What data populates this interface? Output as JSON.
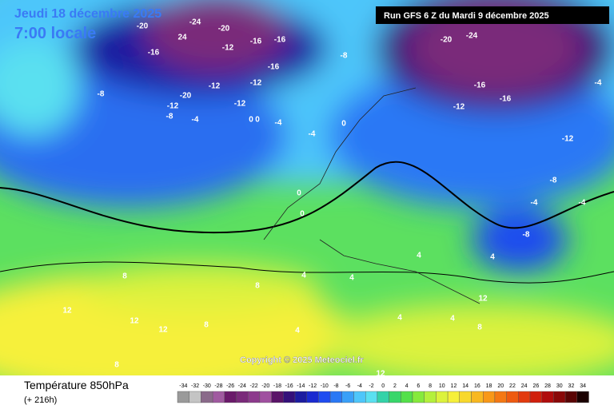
{
  "header": {
    "title": "Jeudi 18 décembre 2025",
    "subtitle": "7:00 locale",
    "run": "Run GFS 6 Z du Mardi 9 décembre 2025"
  },
  "copyright": "Copyright © 2025 Meteociel.fr",
  "footer": {
    "variable": "Température 850hPa",
    "lead": "(+ 216h)"
  },
  "map_labels": [
    -20,
    24,
    -24,
    -20,
    -16,
    -16,
    -12,
    -8,
    -16,
    -16,
    -12,
    -8,
    -20,
    -12,
    -4,
    -12,
    -8,
    -12,
    -16,
    -20,
    -24,
    -16,
    -12,
    -4,
    -12,
    -8,
    -4,
    0,
    0,
    0,
    -4,
    -4,
    0,
    4,
    4,
    4,
    8,
    8,
    12,
    12,
    12,
    8,
    4,
    12,
    8,
    12,
    8,
    4,
    4,
    -8,
    -4,
    0,
    4
  ],
  "scale": [
    {
      "value": -34,
      "color": "#9a9a9a"
    },
    {
      "value": -32,
      "color": "#c4c4c4"
    },
    {
      "value": -30,
      "color": "#8a6a8a"
    },
    {
      "value": -28,
      "color": "#a05aa0"
    },
    {
      "value": -26,
      "color": "#6a1a6a"
    },
    {
      "value": -24,
      "color": "#7a2a7a"
    },
    {
      "value": -22,
      "color": "#8c3a8c"
    },
    {
      "value": -20,
      "color": "#a050a0"
    },
    {
      "value": -18,
      "color": "#5a1468"
    },
    {
      "value": -16,
      "color": "#34107a"
    },
    {
      "value": -14,
      "color": "#1c1ca0"
    },
    {
      "value": -12,
      "color": "#1a2ad0"
    },
    {
      "value": -10,
      "color": "#1f4cf0"
    },
    {
      "value": -8,
      "color": "#2a78f5"
    },
    {
      "value": -6,
      "color": "#3aa0f8"
    },
    {
      "value": -4,
      "color": "#4ec6fa"
    },
    {
      "value": -2,
      "color": "#5ae0f0"
    },
    {
      "value": 0,
      "color": "#34d2a8"
    },
    {
      "value": 2,
      "color": "#38d66a"
    },
    {
      "value": 4,
      "color": "#54e04a"
    },
    {
      "value": 6,
      "color": "#86ea3c"
    },
    {
      "value": 8,
      "color": "#b4f03c"
    },
    {
      "value": 10,
      "color": "#dcf23c"
    },
    {
      "value": 12,
      "color": "#f6f03a"
    },
    {
      "value": 14,
      "color": "#f8d82c"
    },
    {
      "value": 16,
      "color": "#f8b820"
    },
    {
      "value": 18,
      "color": "#f89818"
    },
    {
      "value": 20,
      "color": "#f47814"
    },
    {
      "value": 22,
      "color": "#ee5a10"
    },
    {
      "value": 24,
      "color": "#e23a0e"
    },
    {
      "value": 26,
      "color": "#d0200c"
    },
    {
      "value": 28,
      "color": "#b00c0c"
    },
    {
      "value": 30,
      "color": "#8a0808"
    },
    {
      "value": 32,
      "color": "#5a0404"
    },
    {
      "value": 34,
      "color": "#1a0000"
    }
  ]
}
